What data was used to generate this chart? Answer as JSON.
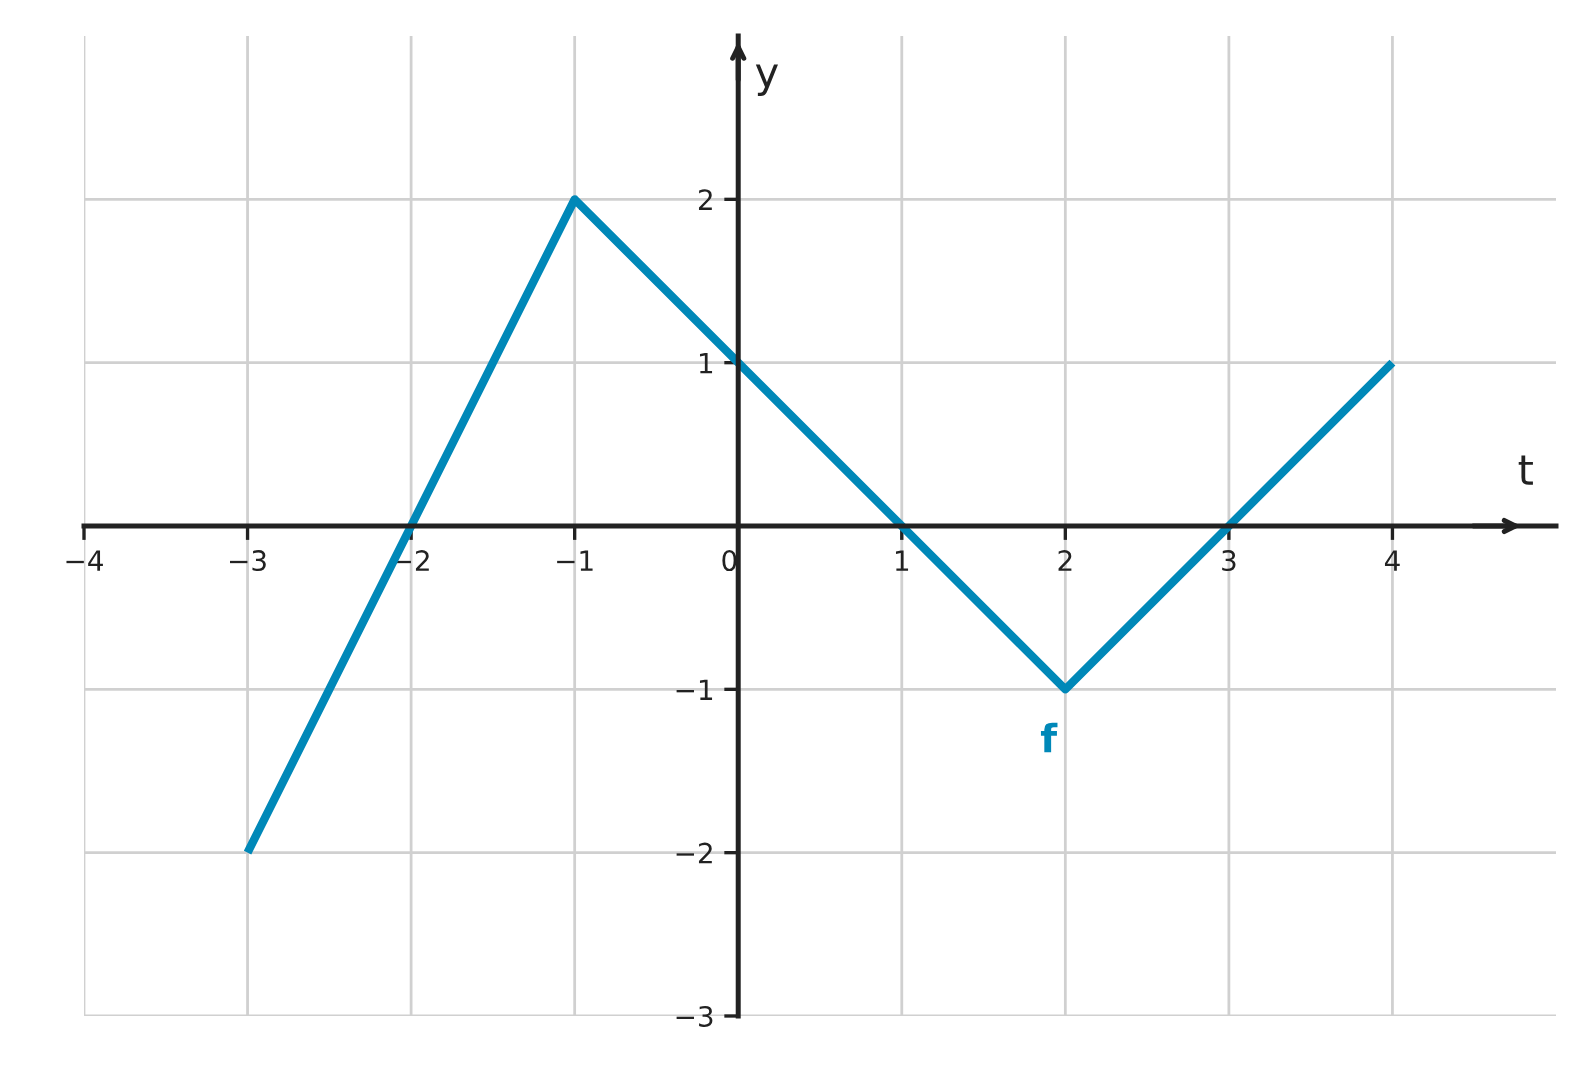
{
  "chart_data": {
    "type": "line",
    "xlabel": "t",
    "ylabel": "y",
    "x": [
      -3,
      -1,
      2,
      4
    ],
    "series": [
      {
        "color": "#0088b8",
        "values": [
          -2,
          2,
          -1,
          1
        ]
      }
    ],
    "annotations": [
      {
        "text": "f",
        "x": 2,
        "y": -1
      }
    ],
    "xlim": [
      -4,
      5
    ],
    "ylim": [
      -3,
      3
    ],
    "xticks": [
      -4,
      -3,
      -2,
      -1,
      0,
      1,
      2,
      3,
      4
    ],
    "yticks": [
      -3,
      -2,
      -1,
      1,
      2
    ],
    "grid": true,
    "legend": false,
    "marker": "none",
    "line_style": "solid"
  }
}
